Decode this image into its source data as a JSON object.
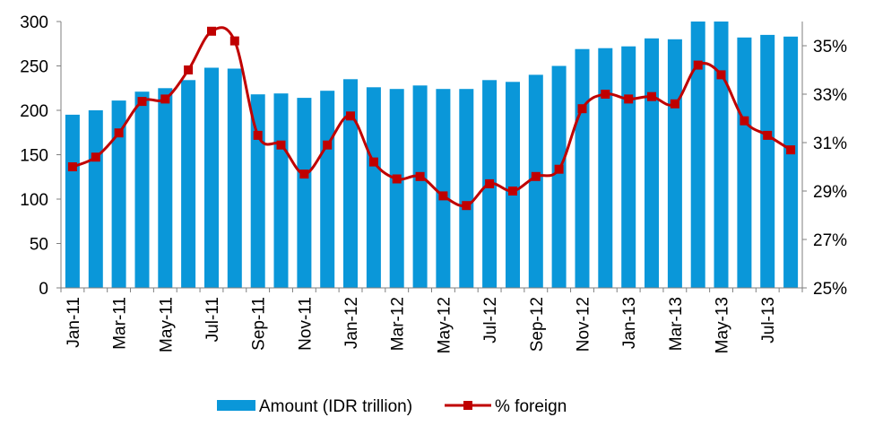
{
  "chart_data": {
    "type": "bar",
    "categories": [
      "Jan-11",
      "Feb-11",
      "Mar-11",
      "Apr-11",
      "May-11",
      "Jun-11",
      "Jul-11",
      "Aug-11",
      "Sep-11",
      "Oct-11",
      "Nov-11",
      "Dec-11",
      "Jan-12",
      "Feb-12",
      "Mar-12",
      "Apr-12",
      "May-12",
      "Jun-12",
      "Jul-12",
      "Aug-12",
      "Sep-12",
      "Oct-12",
      "Nov-12",
      "Dec-12",
      "Jan-13",
      "Feb-13",
      "Mar-13",
      "Apr-13",
      "May-13",
      "Jun-13",
      "Jul-13",
      "Aug-13"
    ],
    "x_tick_labels": [
      "Jan-11",
      "Mar-11",
      "May-11",
      "Jul-11",
      "Sep-11",
      "Nov-11",
      "Jan-12",
      "Mar-12",
      "May-12",
      "Jul-12",
      "Sep-12",
      "Nov-12",
      "Jan-13",
      "Mar-13",
      "May-13",
      "Jul-13"
    ],
    "series": [
      {
        "name": "Amount (IDR trillion)",
        "type": "bar",
        "axis": "left",
        "color": "#0a97d9",
        "values": [
          195,
          200,
          211,
          221,
          225,
          234,
          248,
          247,
          218,
          219,
          214,
          222,
          235,
          226,
          224,
          228,
          224,
          224,
          234,
          232,
          240,
          250,
          269,
          270,
          272,
          281,
          280,
          300,
          300,
          282,
          285,
          283
        ]
      },
      {
        "name": "% foreign",
        "type": "line",
        "axis": "right",
        "color": "#c00000",
        "values": [
          30.0,
          30.4,
          31.4,
          32.7,
          32.8,
          34.0,
          35.6,
          35.2,
          31.3,
          30.9,
          29.7,
          30.9,
          32.1,
          30.2,
          29.5,
          29.6,
          28.8,
          28.4,
          29.3,
          29.0,
          29.6,
          29.9,
          32.4,
          33.0,
          32.8,
          32.9,
          32.6,
          34.2,
          33.8,
          31.9,
          31.3,
          30.7
        ]
      }
    ],
    "y_left": {
      "min": 0,
      "max": 300,
      "ticks": [
        "0",
        "50",
        "100",
        "150",
        "200",
        "250",
        "300"
      ]
    },
    "y_right": {
      "min": 25,
      "max": 36,
      "ticks": [
        "25%",
        "27%",
        "29%",
        "31%",
        "33%",
        "35%"
      ],
      "tick_values": [
        25,
        27,
        29,
        31,
        33,
        35
      ]
    },
    "grid": false,
    "legend_position": "bottom",
    "title": "",
    "xlabel": "",
    "ylabel": ""
  },
  "legend": {
    "items": [
      {
        "label": "Amount (IDR trillion)",
        "color": "#0a97d9",
        "icon": "bar-swatch-icon"
      },
      {
        "label": "% foreign",
        "color": "#c00000",
        "icon": "line-marker-icon"
      }
    ]
  }
}
